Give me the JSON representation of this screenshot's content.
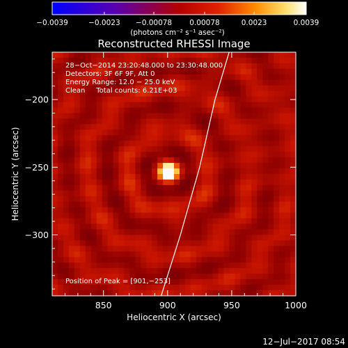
{
  "chart_data": {
    "type": "heatmap",
    "title": "Reconstructed RHESSI Image",
    "xlabel": "Heliocentric X (arcsec)",
    "ylabel": "Heliocentric Y (arcsec)",
    "xlim": [
      810,
      1000
    ],
    "ylim": [
      -345,
      -165
    ],
    "x_ticks": [
      850,
      900,
      950,
      1000
    ],
    "y_ticks": [
      -200,
      -250,
      -300
    ],
    "x_tick_labels": [
      "850",
      "900",
      "950",
      "1000"
    ],
    "y_tick_labels": [
      "−200",
      "−250",
      "−300"
    ],
    "colorbar": {
      "range": [
        -0.0039,
        0.0039
      ],
      "ticks": [
        -0.0039,
        -0.0023,
        -0.00078,
        0.00078,
        0.0023,
        0.0039
      ],
      "tick_labels": [
        "−0.0039",
        "−0.0023",
        "−0.00078",
        "0.00078",
        "0.0023",
        "0.0039"
      ],
      "unit_label": "(photons cm⁻² s⁻¹ asec⁻²)",
      "colormap": "blue-purple-red-orange-yellow-white"
    },
    "peak": {
      "x": 901,
      "y": -253,
      "label": "Position of Peak = [901,−253]"
    },
    "annotations": [
      "28−Oct−2014 23:20:48.000 to 23:30:48.000",
      "Detectors: 3F 6F 9F, Att 0",
      "Energy Range: 12.0 − 25.0 keV",
      "Clean     Total counts: 6.21E+03"
    ],
    "limb_curve": [
      [
        895,
        -345
      ],
      [
        910,
        -300
      ],
      [
        925,
        -250
      ],
      [
        937,
        -200
      ],
      [
        948,
        -165
      ]
    ]
  },
  "footer": {
    "timestamp": "12−Jul−2017 08:54"
  }
}
